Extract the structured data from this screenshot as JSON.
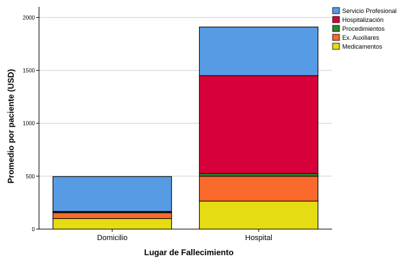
{
  "chart_data": {
    "type": "bar",
    "stacked": true,
    "xlabel": "Lugar de Fallecimiento",
    "ylabel": "Promedio por paciente (USD)",
    "categories": [
      "Domicilio",
      "Hospital"
    ],
    "ylim": [
      0,
      2100
    ],
    "yticks": [
      0,
      500,
      1000,
      1500,
      2000
    ],
    "grid": true,
    "legend_position": "top-right",
    "series": [
      {
        "name": "Medicamentos",
        "color": "#e6dc14",
        "values": [
          100,
          265
        ]
      },
      {
        "name": "Ex. Auxiliares",
        "color": "#f96a2c",
        "values": [
          55,
          235
        ]
      },
      {
        "name": "Procedimientos",
        "color": "#2a8a2a",
        "values": [
          8,
          25
        ]
      },
      {
        "name": "Hospitalización",
        "color": "#d8003a",
        "values": [
          4,
          925
        ]
      },
      {
        "name": "Servicio Profesional",
        "color": "#579be5",
        "values": [
          330,
          460
        ]
      }
    ],
    "legend_order": [
      "Servicio Profesional",
      "Hospitalización",
      "Procedimientos",
      "Ex. Auxiliares",
      "Medicamentos"
    ]
  }
}
